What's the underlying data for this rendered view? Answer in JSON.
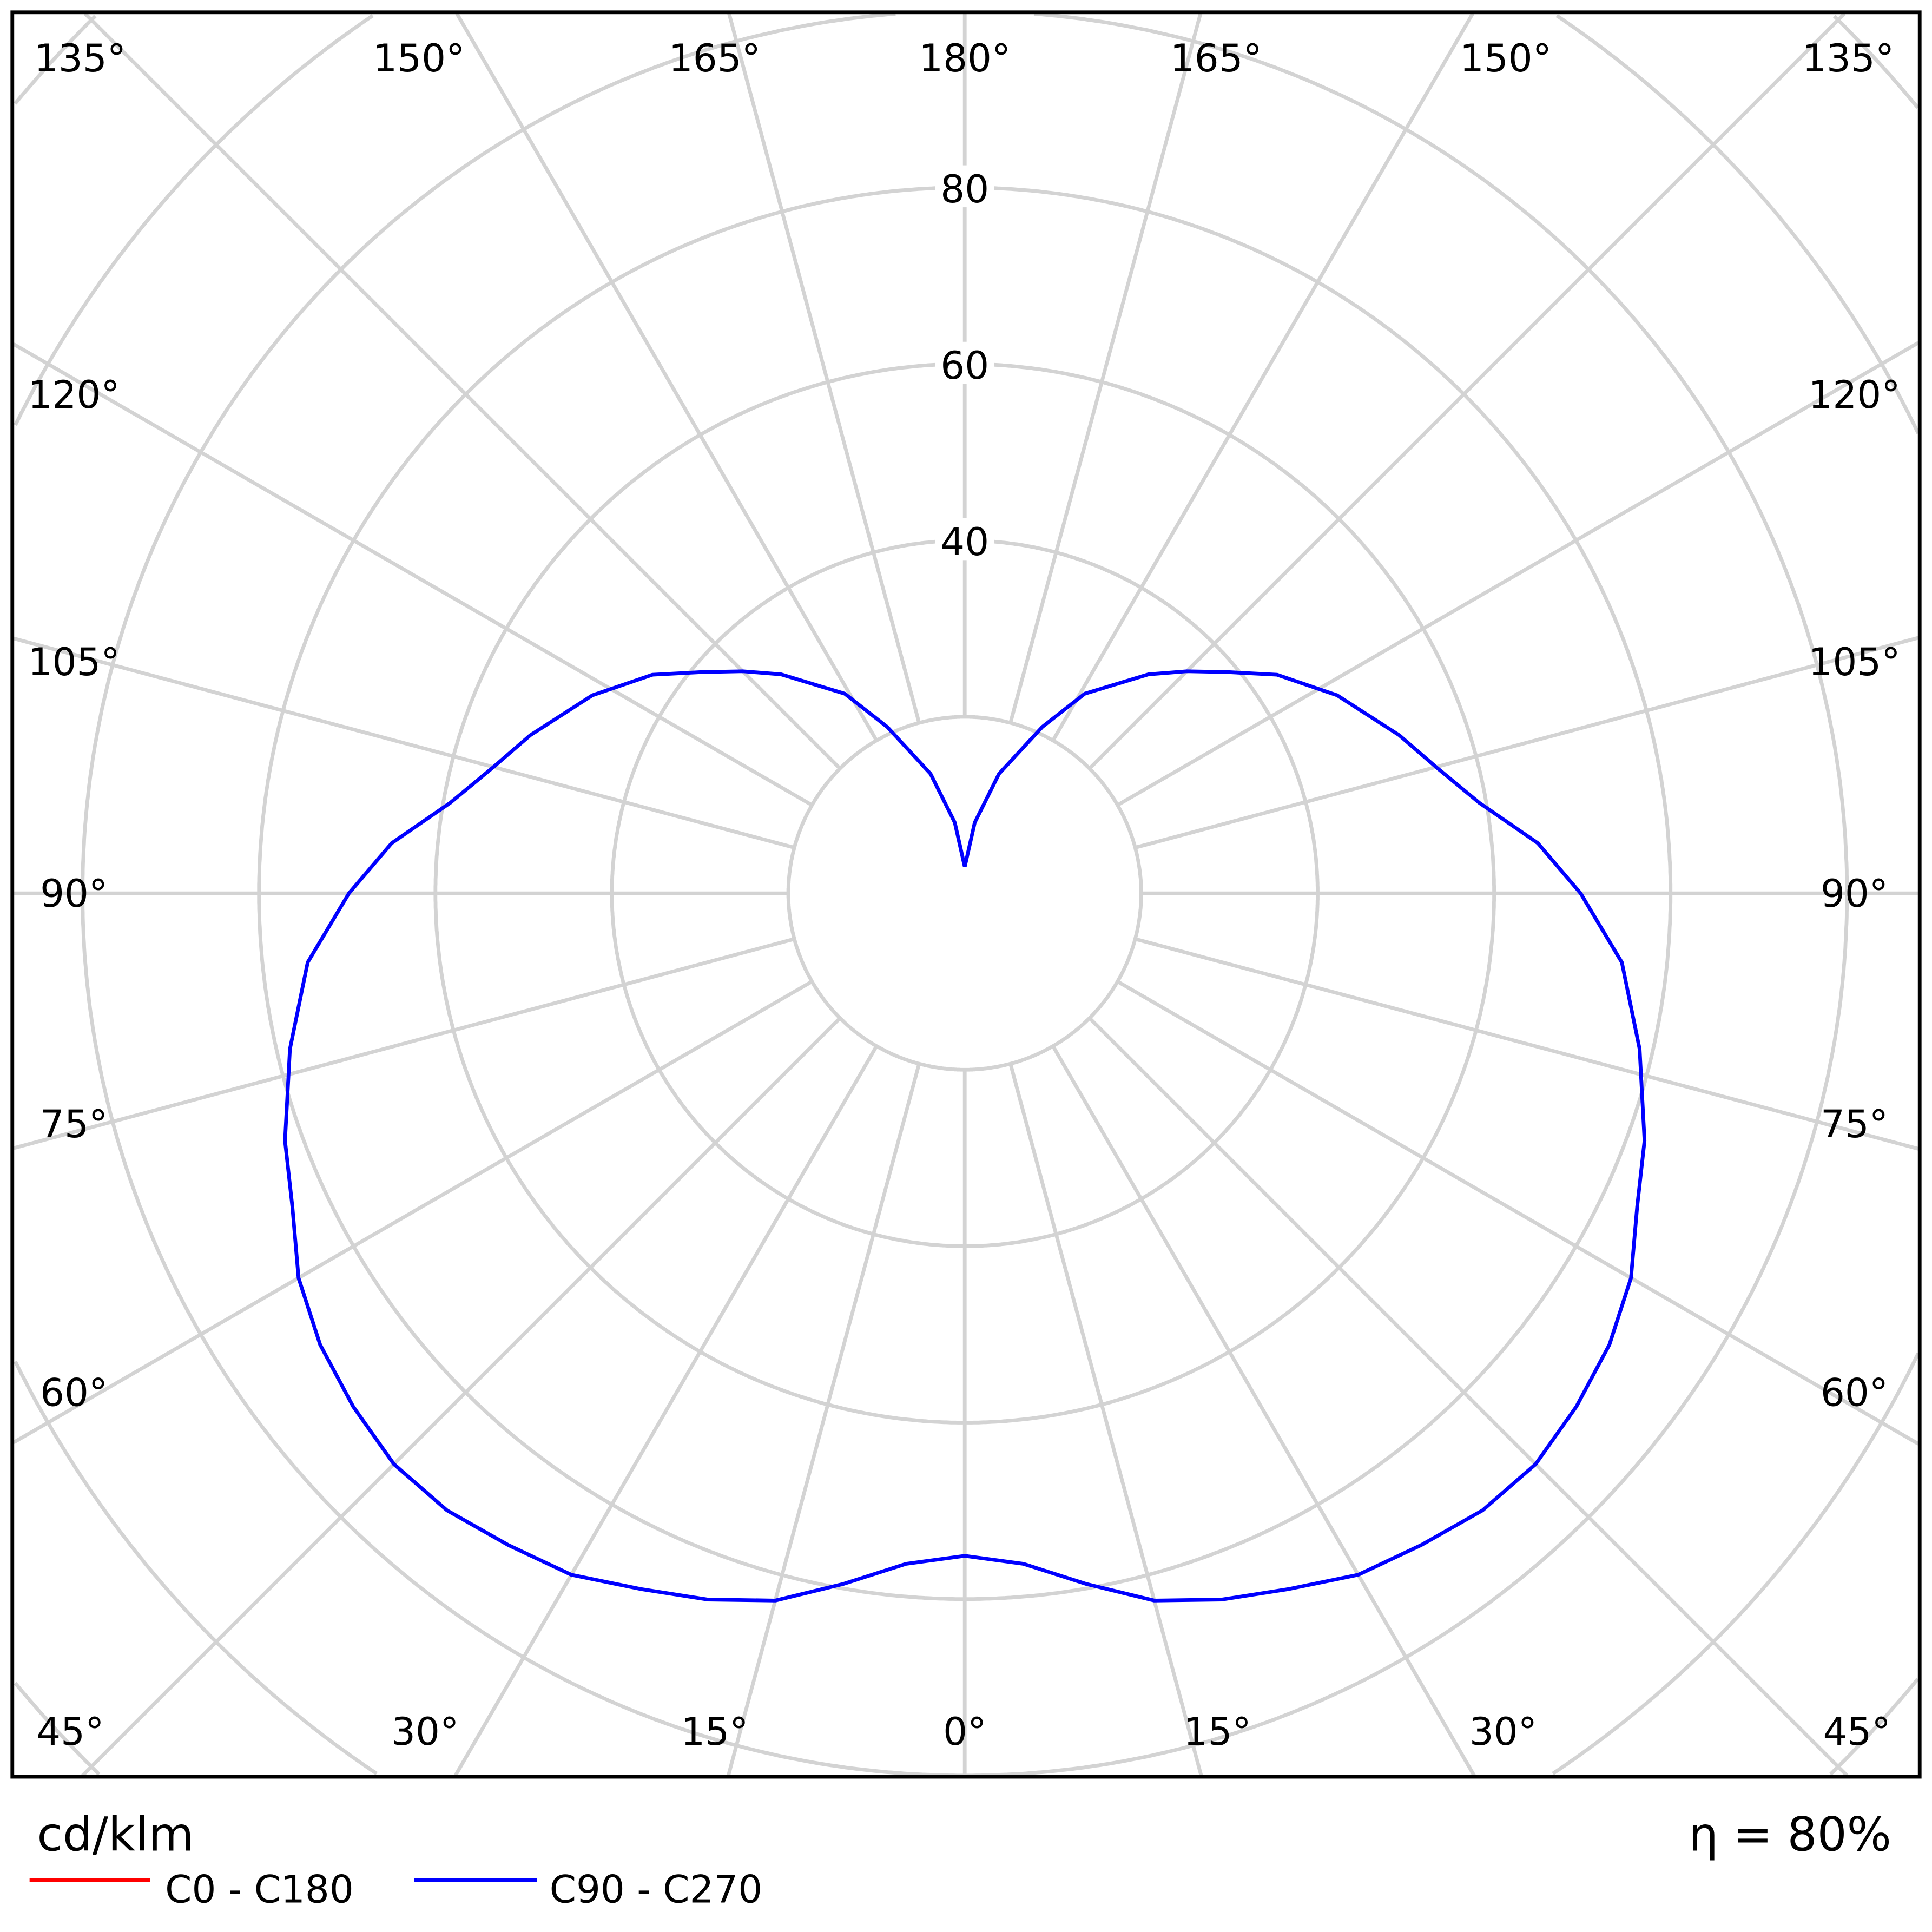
{
  "chart_data": {
    "type": "polar",
    "unit_label": "cd/klm",
    "efficiency_label": "η = 80%",
    "radial_ticks": [
      20,
      40,
      60,
      80,
      100,
      120,
      140,
      160
    ],
    "radial_tick_labels": [
      "40",
      "60",
      "80"
    ],
    "radial_labeled_values": [
      40,
      60,
      80
    ],
    "grid": true,
    "grid_color": "#d3d3d3",
    "angle_labels": {
      "top": [
        "135°",
        "150°",
        "165°",
        "180°",
        "165°",
        "150°",
        "135°"
      ],
      "left": [
        "120°",
        "105°",
        "90°",
        "75°",
        "60°"
      ],
      "right": [
        "120°",
        "105°",
        "90°",
        "75°",
        "60°"
      ],
      "bottom": [
        "45°",
        "30°",
        "15°",
        "0°",
        "15°",
        "30°",
        "45°"
      ]
    },
    "legend_placement": "bottom-left",
    "series": [
      {
        "name": "C0 - C180",
        "color": "#ff0000",
        "gamma": [],
        "values": []
      },
      {
        "name": "C90 - C270",
        "color": "#0000ff",
        "gamma": [
          0,
          5,
          10,
          15,
          20,
          25,
          30,
          35,
          40,
          45,
          50,
          55,
          60,
          65,
          70,
          77,
          84,
          90,
          95,
          100,
          105,
          110,
          118,
          125,
          130,
          135,
          140,
          149,
          155,
          164,
          172,
          180
        ],
        "values": [
          75.1,
          76.3,
          79.5,
          83,
          85.2,
          87,
          89.2,
          90.2,
          91.3,
          91.5,
          90.5,
          89.2,
          87.2,
          84.1,
          82,
          78.5,
          74.9,
          69.8,
          65.2,
          59.2,
          55.3,
          52.4,
          47.8,
          43.2,
          39,
          35.6,
          32.4,
          26.4,
          20.8,
          14.1,
          8.1,
          3
        ]
      }
    ]
  }
}
